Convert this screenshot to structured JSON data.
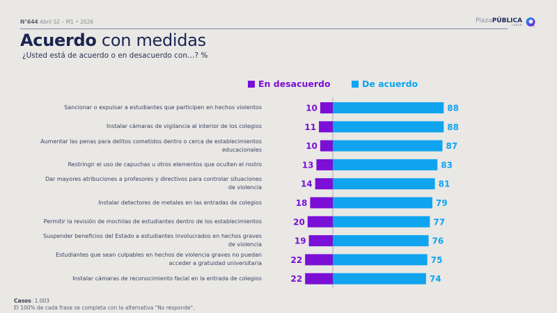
{
  "header": {
    "issue": "N°644",
    "period": "Abril S2 – M1 • 2026",
    "title_bold": "Acuerdo",
    "title_rest": "con medidas",
    "subtitle": "¿Usted está de acuerdo o en desacuerdo con…? %"
  },
  "logo": {
    "main_light": "Plaza",
    "main_bold": "PÚBLICA",
    "sub": "CADEM"
  },
  "colors": {
    "disagree": "#7b0fd6",
    "agree": "#10a4ef",
    "title": "#1a2550"
  },
  "footer": {
    "cases_label": "Casos",
    "cases_value": ": 1.003",
    "note": "El 100% de cada frase se completa con la alternativa \"No responde\"."
  },
  "chart_data": {
    "type": "bar",
    "orientation": "horizontal-diverging",
    "title": "Acuerdo con medidas",
    "subtitle": "¿Usted está de acuerdo o en desacuerdo con…? %",
    "legend": [
      "En desacuerdo",
      "De acuerdo"
    ],
    "legend_position": "top",
    "grid": false,
    "categories": [
      "Sancionar o expulsar a estudiantes que participen en hechos violentos",
      "Instalar cámaras de vigilancia al interior de los colegios",
      "Aumentar las penas para delitos cometidos dentro o cerca de establecimientos educacionales",
      "Restringir el uso de capuchas u otros elementos que oculten el rostro",
      "Dar mayores atribuciones a profesores y directivos para controlar situaciones de violencia",
      "Instalar detectores de metales en las entradas de colegios",
      "Permitir la revisión de mochilas de estudiantes dentro de los establecimientos",
      "Suspender beneficios del Estado a estudiantes involucrados en hechos graves de violencia",
      "Estudiantes que sean culpables en hechos de violencia graves no puedan acceder a gratuidad universitaria",
      "Instalar cámaras de reconocimiento facial en la entrada de colegios"
    ],
    "series": [
      {
        "name": "En desacuerdo",
        "values": [
          10,
          11,
          10,
          13,
          14,
          18,
          20,
          19,
          22,
          22
        ]
      },
      {
        "name": "De acuerdo",
        "values": [
          88,
          88,
          87,
          83,
          81,
          79,
          77,
          76,
          75,
          74
        ]
      }
    ],
    "xlim": [
      -100,
      100
    ],
    "unit": "%"
  }
}
